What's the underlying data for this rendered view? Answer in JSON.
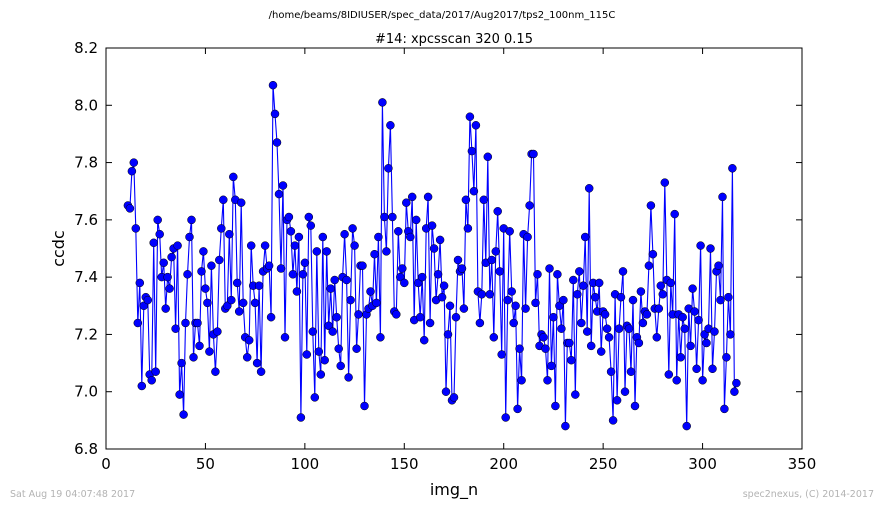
{
  "figure": {
    "suptitle": "/home/beams/8IDIUSER/spec_data/2017/Aug2017/tps2_100nm_115C",
    "footer_left": "Sat Aug 19 04:07:48 2017",
    "footer_right": "spec2nexus, (C) 2014-2017"
  },
  "chart_data": {
    "type": "line",
    "title": "#14: xpcsscan 320 0.15",
    "xlabel": "img_n",
    "ylabel": "ccdc",
    "xlim": [
      0,
      350
    ],
    "ylim": [
      6.8,
      8.2
    ],
    "xticks": [
      "0",
      "50",
      "100",
      "150",
      "200",
      "250",
      "300",
      "350"
    ],
    "yticks": [
      "6.8",
      "7.0",
      "7.2",
      "7.4",
      "7.6",
      "7.8",
      "8.0",
      "8.2"
    ],
    "marker": "circle",
    "line_color": "#0000ff",
    "grid": false,
    "x_start": 11,
    "y": [
      7.65,
      7.64,
      7.77,
      7.8,
      7.57,
      7.24,
      7.38,
      7.02,
      7.3,
      7.33,
      7.32,
      7.06,
      7.04,
      7.52,
      7.07,
      7.6,
      7.55,
      7.4,
      7.45,
      7.29,
      7.4,
      7.36,
      7.47,
      7.5,
      7.22,
      7.51,
      6.99,
      7.1,
      6.92,
      7.24,
      7.41,
      7.54,
      7.6,
      7.12,
      7.24,
      7.24,
      7.16,
      7.42,
      7.49,
      7.36,
      7.31,
      7.14,
      7.44,
      7.2,
      7.07,
      7.21,
      7.46,
      7.57,
      7.67,
      7.29,
      7.3,
      7.55,
      7.32,
      7.75,
      7.67,
      7.38,
      7.28,
      7.66,
      7.31,
      7.19,
      7.12,
      7.18,
      7.51,
      7.37,
      7.31,
      7.1,
      7.37,
      7.07,
      7.42,
      7.51,
      7.43,
      7.44,
      7.26,
      8.07,
      7.97,
      7.87,
      7.69,
      7.43,
      7.72,
      7.19,
      7.6,
      7.61,
      7.56,
      7.41,
      7.51,
      7.35,
      7.54,
      6.91,
      7.41,
      7.45,
      7.13,
      7.61,
      7.58,
      7.21,
      6.98,
      7.49,
      7.14,
      7.06,
      7.54,
      7.11,
      7.49,
      7.23,
      7.36,
      7.21,
      7.39,
      7.26,
      7.15,
      7.09,
      7.4,
      7.55,
      7.39,
      7.05,
      7.32,
      7.57,
      7.51,
      7.15,
      7.27,
      7.44,
      7.44,
      6.95,
      7.27,
      7.29,
      7.35,
      7.3,
      7.48,
      7.31,
      7.54,
      7.19,
      8.01,
      7.61,
      7.49,
      7.78,
      7.93,
      7.61,
      7.28,
      7.27,
      7.56,
      7.4,
      7.43,
      7.38,
      7.66,
      7.56,
      7.54,
      7.68,
      7.25,
      7.6,
      7.38,
      7.26,
      7.4,
      7.18,
      7.57,
      7.68,
      7.24,
      7.58,
      7.5,
      7.32,
      7.41,
      7.53,
      7.33,
      7.37,
      7.0,
      7.2,
      7.3,
      6.97,
      6.98,
      7.26,
      7.46,
      7.42,
      7.43,
      7.29,
      7.67,
      7.57,
      7.96,
      7.84,
      7.7,
      7.93,
      7.35,
      7.24,
      7.34,
      7.67,
      7.45,
      7.82,
      7.34,
      7.46,
      7.19,
      7.49,
      7.63,
      7.42,
      7.13,
      7.57,
      6.91,
      7.32,
      7.56,
      7.35,
      7.24,
      7.3,
      6.94,
      7.15,
      7.04,
      7.55,
      7.29,
      7.54,
      7.65,
      7.83,
      7.83,
      7.31,
      7.41,
      7.16,
      7.2,
      7.19,
      7.15,
      7.04,
      7.43,
      7.09,
      7.26,
      6.95,
      7.41,
      7.3,
      7.22,
      7.32,
      6.88,
      7.17,
      7.17,
      7.11,
      7.39,
      6.99,
      7.34,
      7.42,
      7.24,
      7.37,
      7.54,
      7.21,
      7.71,
      7.16,
      7.38,
      7.33,
      7.28,
      7.38,
      7.14,
      7.28,
      7.27,
      7.22,
      7.19,
      7.07,
      6.9,
      7.34,
      6.97,
      7.22,
      7.33,
      7.42,
      7.0,
      7.23,
      7.22,
      7.07,
      7.32,
      6.95,
      7.19,
      7.17,
      7.35,
      7.24,
      7.28,
      7.27,
      7.44,
      7.65,
      7.48,
      7.29,
      7.19,
      7.29,
      7.37,
      7.34,
      7.73,
      7.39,
      7.06,
      7.38,
      7.27,
      7.62,
      7.04,
      7.27,
      7.12,
      7.26,
      7.22,
      6.88,
      7.29,
      7.16,
      7.36,
      7.28,
      7.08,
      7.25,
      7.51,
      7.04,
      7.2,
      7.17,
      7.22,
      7.5,
      7.08,
      7.21,
      7.42,
      7.44,
      7.32,
      7.68,
      6.94,
      7.12,
      7.33,
      7.2,
      7.78,
      7.0,
      7.03
    ]
  }
}
